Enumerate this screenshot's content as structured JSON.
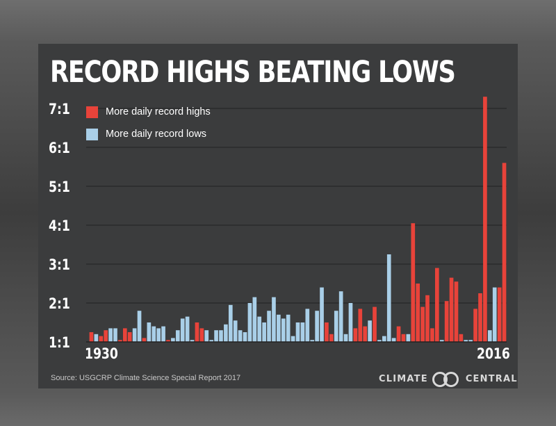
{
  "title": "RECORD HIGHS BEATING LOWS",
  "source": "Source: USGCRP Climate Science Special Report 2017",
  "brand": {
    "left": "CLIMATE",
    "right": "CENTRAL",
    "logo_icon": "climate-central-rings-icon"
  },
  "colors": {
    "highs": "#e8433a",
    "lows": "#a9cfe8",
    "background": "#3b3c3d",
    "grid": "#222222"
  },
  "chart_data": {
    "type": "bar",
    "title": "RECORD HIGHS BEATING LOWS",
    "xlabel": "",
    "ylabel": "",
    "ylim": [
      1,
      7.2
    ],
    "y_ticks": [
      1,
      2,
      3,
      4,
      5,
      6,
      7
    ],
    "y_tick_labels": [
      "1:1",
      "2:1",
      "3:1",
      "4:1",
      "5:1",
      "6:1",
      "7:1"
    ],
    "x_start_label": "1930",
    "x_end_label": "2016",
    "years": [
      1930,
      1931,
      1932,
      1933,
      1934,
      1935,
      1936,
      1937,
      1938,
      1939,
      1940,
      1941,
      1942,
      1943,
      1944,
      1945,
      1946,
      1947,
      1948,
      1949,
      1950,
      1951,
      1952,
      1953,
      1954,
      1955,
      1956,
      1957,
      1958,
      1959,
      1960,
      1961,
      1962,
      1963,
      1964,
      1965,
      1966,
      1967,
      1968,
      1969,
      1970,
      1971,
      1972,
      1973,
      1974,
      1975,
      1976,
      1977,
      1978,
      1979,
      1980,
      1981,
      1982,
      1983,
      1984,
      1985,
      1986,
      1987,
      1988,
      1989,
      1990,
      1991,
      1992,
      1993,
      1994,
      1995,
      1996,
      1997,
      1998,
      1999,
      2000,
      2001,
      2002,
      2003,
      2004,
      2005,
      2006,
      2007,
      2008,
      2009,
      2010,
      2011,
      2012,
      2013,
      2014,
      2015,
      2016
    ],
    "ratios": [
      1.25,
      1.2,
      1.15,
      1.3,
      1.35,
      1.35,
      1.05,
      1.35,
      1.25,
      1.35,
      1.8,
      1.1,
      1.5,
      1.4,
      1.35,
      1.4,
      1.05,
      1.1,
      1.3,
      1.6,
      1.65,
      1.05,
      1.5,
      1.35,
      1.3,
      1.05,
      1.3,
      1.3,
      1.45,
      1.95,
      1.55,
      1.3,
      1.25,
      2.0,
      2.15,
      1.65,
      1.5,
      1.8,
      2.15,
      1.7,
      1.6,
      1.7,
      1.15,
      1.5,
      1.5,
      1.85,
      1.05,
      1.8,
      2.4,
      1.5,
      1.2,
      1.8,
      2.3,
      1.2,
      2.0,
      1.35,
      1.85,
      1.4,
      1.55,
      1.9,
      1.05,
      1.15,
      3.25,
      1.1,
      1.4,
      1.2,
      1.2,
      4.05,
      2.5,
      1.9,
      2.2,
      1.35,
      2.9,
      1.05,
      2.05,
      2.65,
      2.55,
      1.2,
      1.05,
      1.05,
      1.85,
      2.25,
      7.3,
      1.3,
      2.4,
      2.4,
      5.6
    ],
    "series_by_year": [
      "highs",
      "lows",
      "highs",
      "highs",
      "lows",
      "lows",
      "highs",
      "highs",
      "highs",
      "lows",
      "lows",
      "highs",
      "lows",
      "lows",
      "lows",
      "lows",
      "highs",
      "lows",
      "lows",
      "lows",
      "lows",
      "lows",
      "highs",
      "highs",
      "lows",
      "lows",
      "lows",
      "lows",
      "lows",
      "lows",
      "lows",
      "lows",
      "lows",
      "lows",
      "lows",
      "lows",
      "lows",
      "lows",
      "lows",
      "lows",
      "lows",
      "lows",
      "lows",
      "lows",
      "lows",
      "lows",
      "lows",
      "lows",
      "lows",
      "highs",
      "highs",
      "lows",
      "lows",
      "lows",
      "lows",
      "highs",
      "highs",
      "highs",
      "lows",
      "highs",
      "lows",
      "lows",
      "lows",
      "lows",
      "highs",
      "highs",
      "lows",
      "highs",
      "highs",
      "highs",
      "highs",
      "highs",
      "highs",
      "lows",
      "highs",
      "highs",
      "highs",
      "highs",
      "lows",
      "lows",
      "highs",
      "highs",
      "highs",
      "lows",
      "lows",
      "highs",
      "highs"
    ],
    "legend": [
      {
        "key": "highs",
        "label": "More daily record highs"
      },
      {
        "key": "lows",
        "label": "More daily record lows"
      }
    ],
    "legend_position": "top-left"
  }
}
